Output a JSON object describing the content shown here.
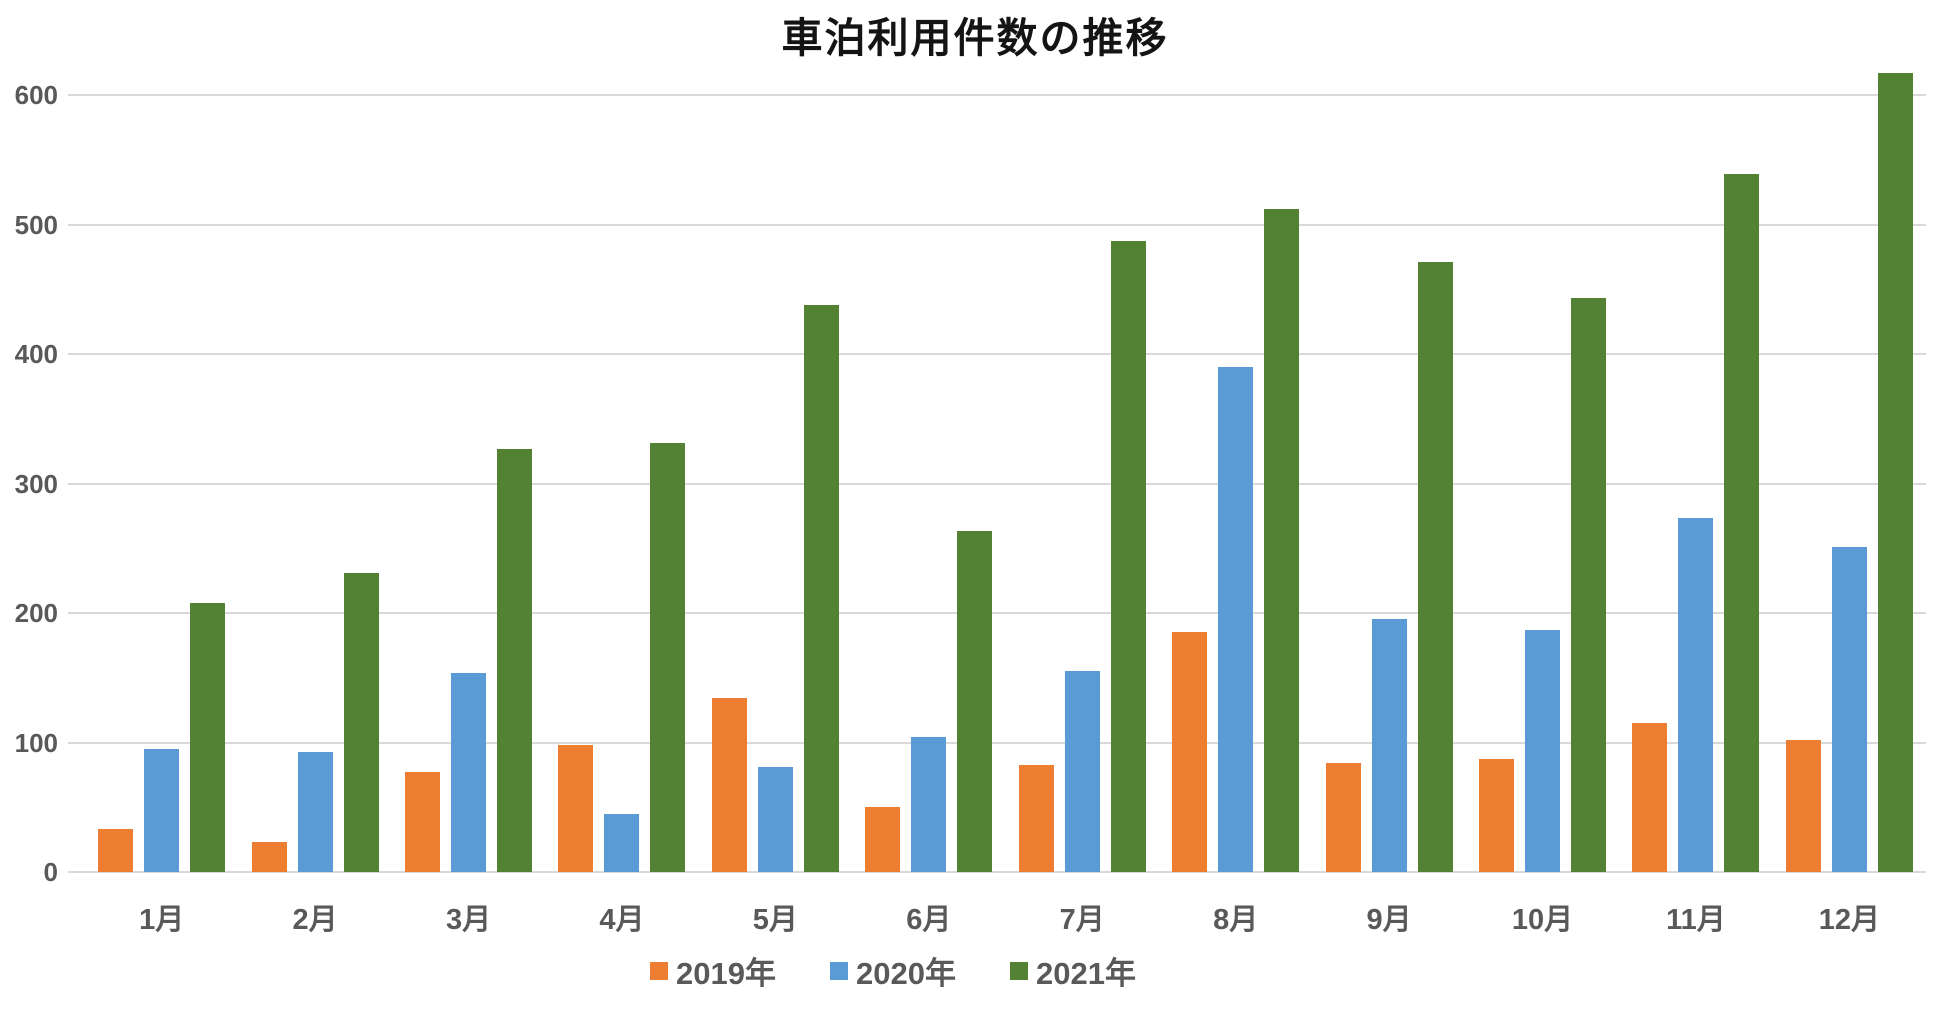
{
  "title": "車泊利用件数の推移",
  "chart_data": {
    "type": "bar",
    "title": "車泊利用件数の推移",
    "categories": [
      "1月",
      "2月",
      "3月",
      "4月",
      "5月",
      "6月",
      "7月",
      "8月",
      "9月",
      "10月",
      "11月",
      "12月"
    ],
    "series": [
      {
        "name": "2019年",
        "color": "#ED7D31",
        "values": [
          33,
          23,
          77,
          98,
          134,
          50,
          83,
          185,
          84,
          87,
          115,
          102
        ]
      },
      {
        "name": "2020年",
        "color": "#5B9BD5",
        "values": [
          95,
          93,
          154,
          45,
          81,
          104,
          155,
          390,
          195,
          187,
          273,
          251
        ]
      },
      {
        "name": "2021年",
        "color": "#548235",
        "values": [
          208,
          231,
          327,
          331,
          438,
          263,
          487,
          512,
          471,
          443,
          539,
          617
        ]
      }
    ],
    "xlabel": "",
    "ylabel": "",
    "ylim": [
      0,
      600
    ],
    "yticks": [
      0,
      100,
      200,
      300,
      400,
      500,
      600
    ],
    "grid": "horizontal",
    "gridline_color": "#D9D9D9",
    "axis_text_color": "#595959",
    "legend_position": "bottom"
  }
}
